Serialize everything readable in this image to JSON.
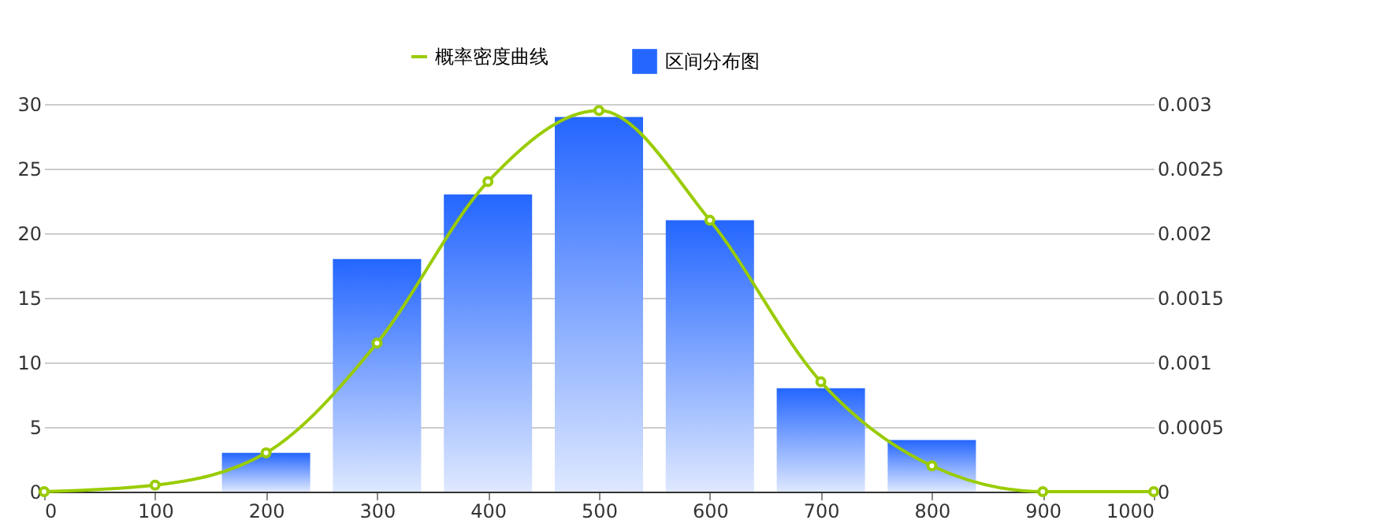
{
  "chart_data": {
    "type": "bar",
    "x": [
      200,
      300,
      400,
      500,
      600,
      700,
      800
    ],
    "series": [
      {
        "name": "概率密度曲线",
        "type": "line",
        "axis": "y2",
        "color": "#99cc00",
        "marker": "circle",
        "x": [
          0,
          100,
          200,
          300,
          400,
          500,
          600,
          700,
          800,
          900,
          1000
        ],
        "values": [
          0,
          5e-05,
          0.0003,
          0.00115,
          0.0024,
          0.00295,
          0.0021,
          0.00085,
          0.0002,
          0,
          0
        ]
      },
      {
        "name": "区间分布图",
        "color": "#2466ff",
        "values": [
          3,
          18,
          23,
          29,
          21,
          8,
          4
        ]
      }
    ],
    "xlim": [
      0,
      1000
    ],
    "xticks": [
      0,
      100,
      200,
      300,
      400,
      500,
      600,
      700,
      800,
      900,
      {
        "value": 1000,
        "label": "1000"
      }
    ],
    "ylim": [
      0,
      30
    ],
    "yticks": [
      0,
      5,
      10,
      15,
      20,
      25,
      30
    ],
    "y2lim": [
      0,
      0.003
    ],
    "y2ticks": [
      0,
      0.0005,
      0.001,
      0.0015,
      0.002,
      0.0025,
      0.003
    ],
    "grid": "y",
    "legend": "top"
  }
}
